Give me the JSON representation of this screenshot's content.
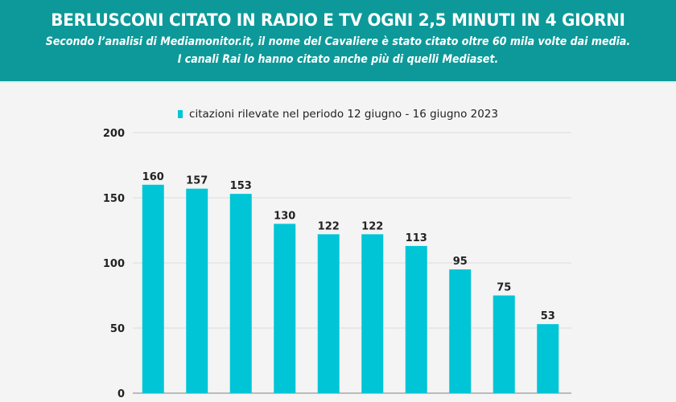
{
  "header": {
    "title": "BERLUSCONI CITATO IN RADIO E TV OGNI 2,5 MINUTI IN 4 GIORNI",
    "subtitle_line1": "Secondo l’analisi di Mediamonitor.it, il nome del Cavaliere è stato citato oltre 60 mila volte dai media.",
    "subtitle_line2": "I canali Rai lo hanno citato anche più di quelli Mediaset."
  },
  "colors": {
    "header": "#0d9999",
    "bar": "#00c5d6",
    "background": "#f4f4f4"
  },
  "chart_data": {
    "type": "bar",
    "title": "BERLUSCONI CITATO IN RADIO E TV OGNI 2,5 MINUTI IN 4 GIORNI",
    "series": [
      {
        "name": "citazioni rilevate nel periodo 12 giugno - 16 giugno 2023",
        "values": [
          160,
          157,
          153,
          130,
          122,
          122,
          113,
          95,
          75,
          53
        ]
      }
    ],
    "ylim": [
      0,
      200
    ],
    "yticks": [
      0,
      50,
      100,
      150,
      200
    ],
    "grid": true,
    "legend": "top-center",
    "data_labels": true
  }
}
